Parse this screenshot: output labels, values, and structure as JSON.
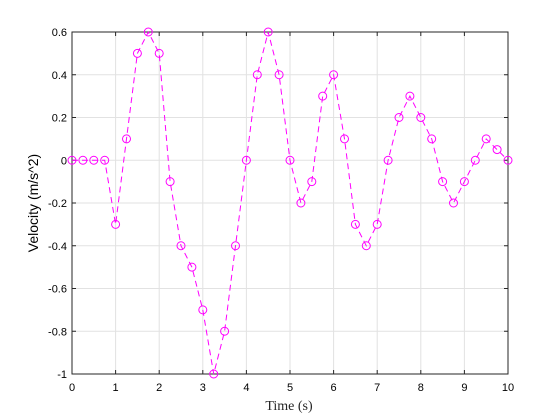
{
  "chart_data": {
    "type": "line",
    "title": "",
    "xlabel": "Time (s)",
    "ylabel": "Velocity (m/s^2)",
    "xlim": [
      0,
      10
    ],
    "ylim": [
      -1,
      0.6
    ],
    "grid": true,
    "xticks": [
      0,
      1,
      2,
      3,
      4,
      5,
      6,
      7,
      8,
      9,
      10
    ],
    "yticks": [
      -1,
      -0.8,
      -0.6,
      -0.4,
      -0.2,
      0,
      0.2,
      0.4,
      0.6
    ],
    "xtick_labels": [
      "0",
      "1",
      "2",
      "3",
      "4",
      "5",
      "6",
      "7",
      "8",
      "9",
      "10"
    ],
    "ytick_labels": [
      "-1",
      "-0.8",
      "-0.6",
      "-0.4",
      "-0.2",
      "0",
      "0.2",
      "0.4",
      "0.6"
    ],
    "series": [
      {
        "color": "#ff00ff",
        "line_style": "dashed",
        "marker": "circle",
        "x": [
          0,
          0.25,
          0.5,
          0.75,
          1,
          1.25,
          1.5,
          1.75,
          2,
          2.25,
          2.5,
          2.75,
          3,
          3.25,
          3.5,
          3.75,
          4,
          4.25,
          4.5,
          4.75,
          5,
          5.25,
          5.5,
          5.75,
          6,
          6.25,
          6.5,
          6.75,
          7,
          7.25,
          7.5,
          7.75,
          8,
          8.25,
          8.5,
          8.75,
          9,
          9.25,
          9.5,
          9.75,
          10
        ],
        "y": [
          0,
          0,
          0,
          0,
          -0.3,
          0.1,
          0.5,
          0.6,
          0.5,
          -0.1,
          -0.4,
          -0.5,
          -0.7,
          -1.0,
          -0.8,
          -0.4,
          0,
          0.4,
          0.6,
          0.4,
          0,
          -0.2,
          -0.1,
          0.3,
          0.4,
          0.1,
          -0.3,
          -0.4,
          -0.3,
          0,
          0.2,
          0.3,
          0.2,
          0.1,
          -0.1,
          -0.2,
          -0.1,
          0,
          0.1,
          0.05,
          0
        ]
      }
    ]
  }
}
